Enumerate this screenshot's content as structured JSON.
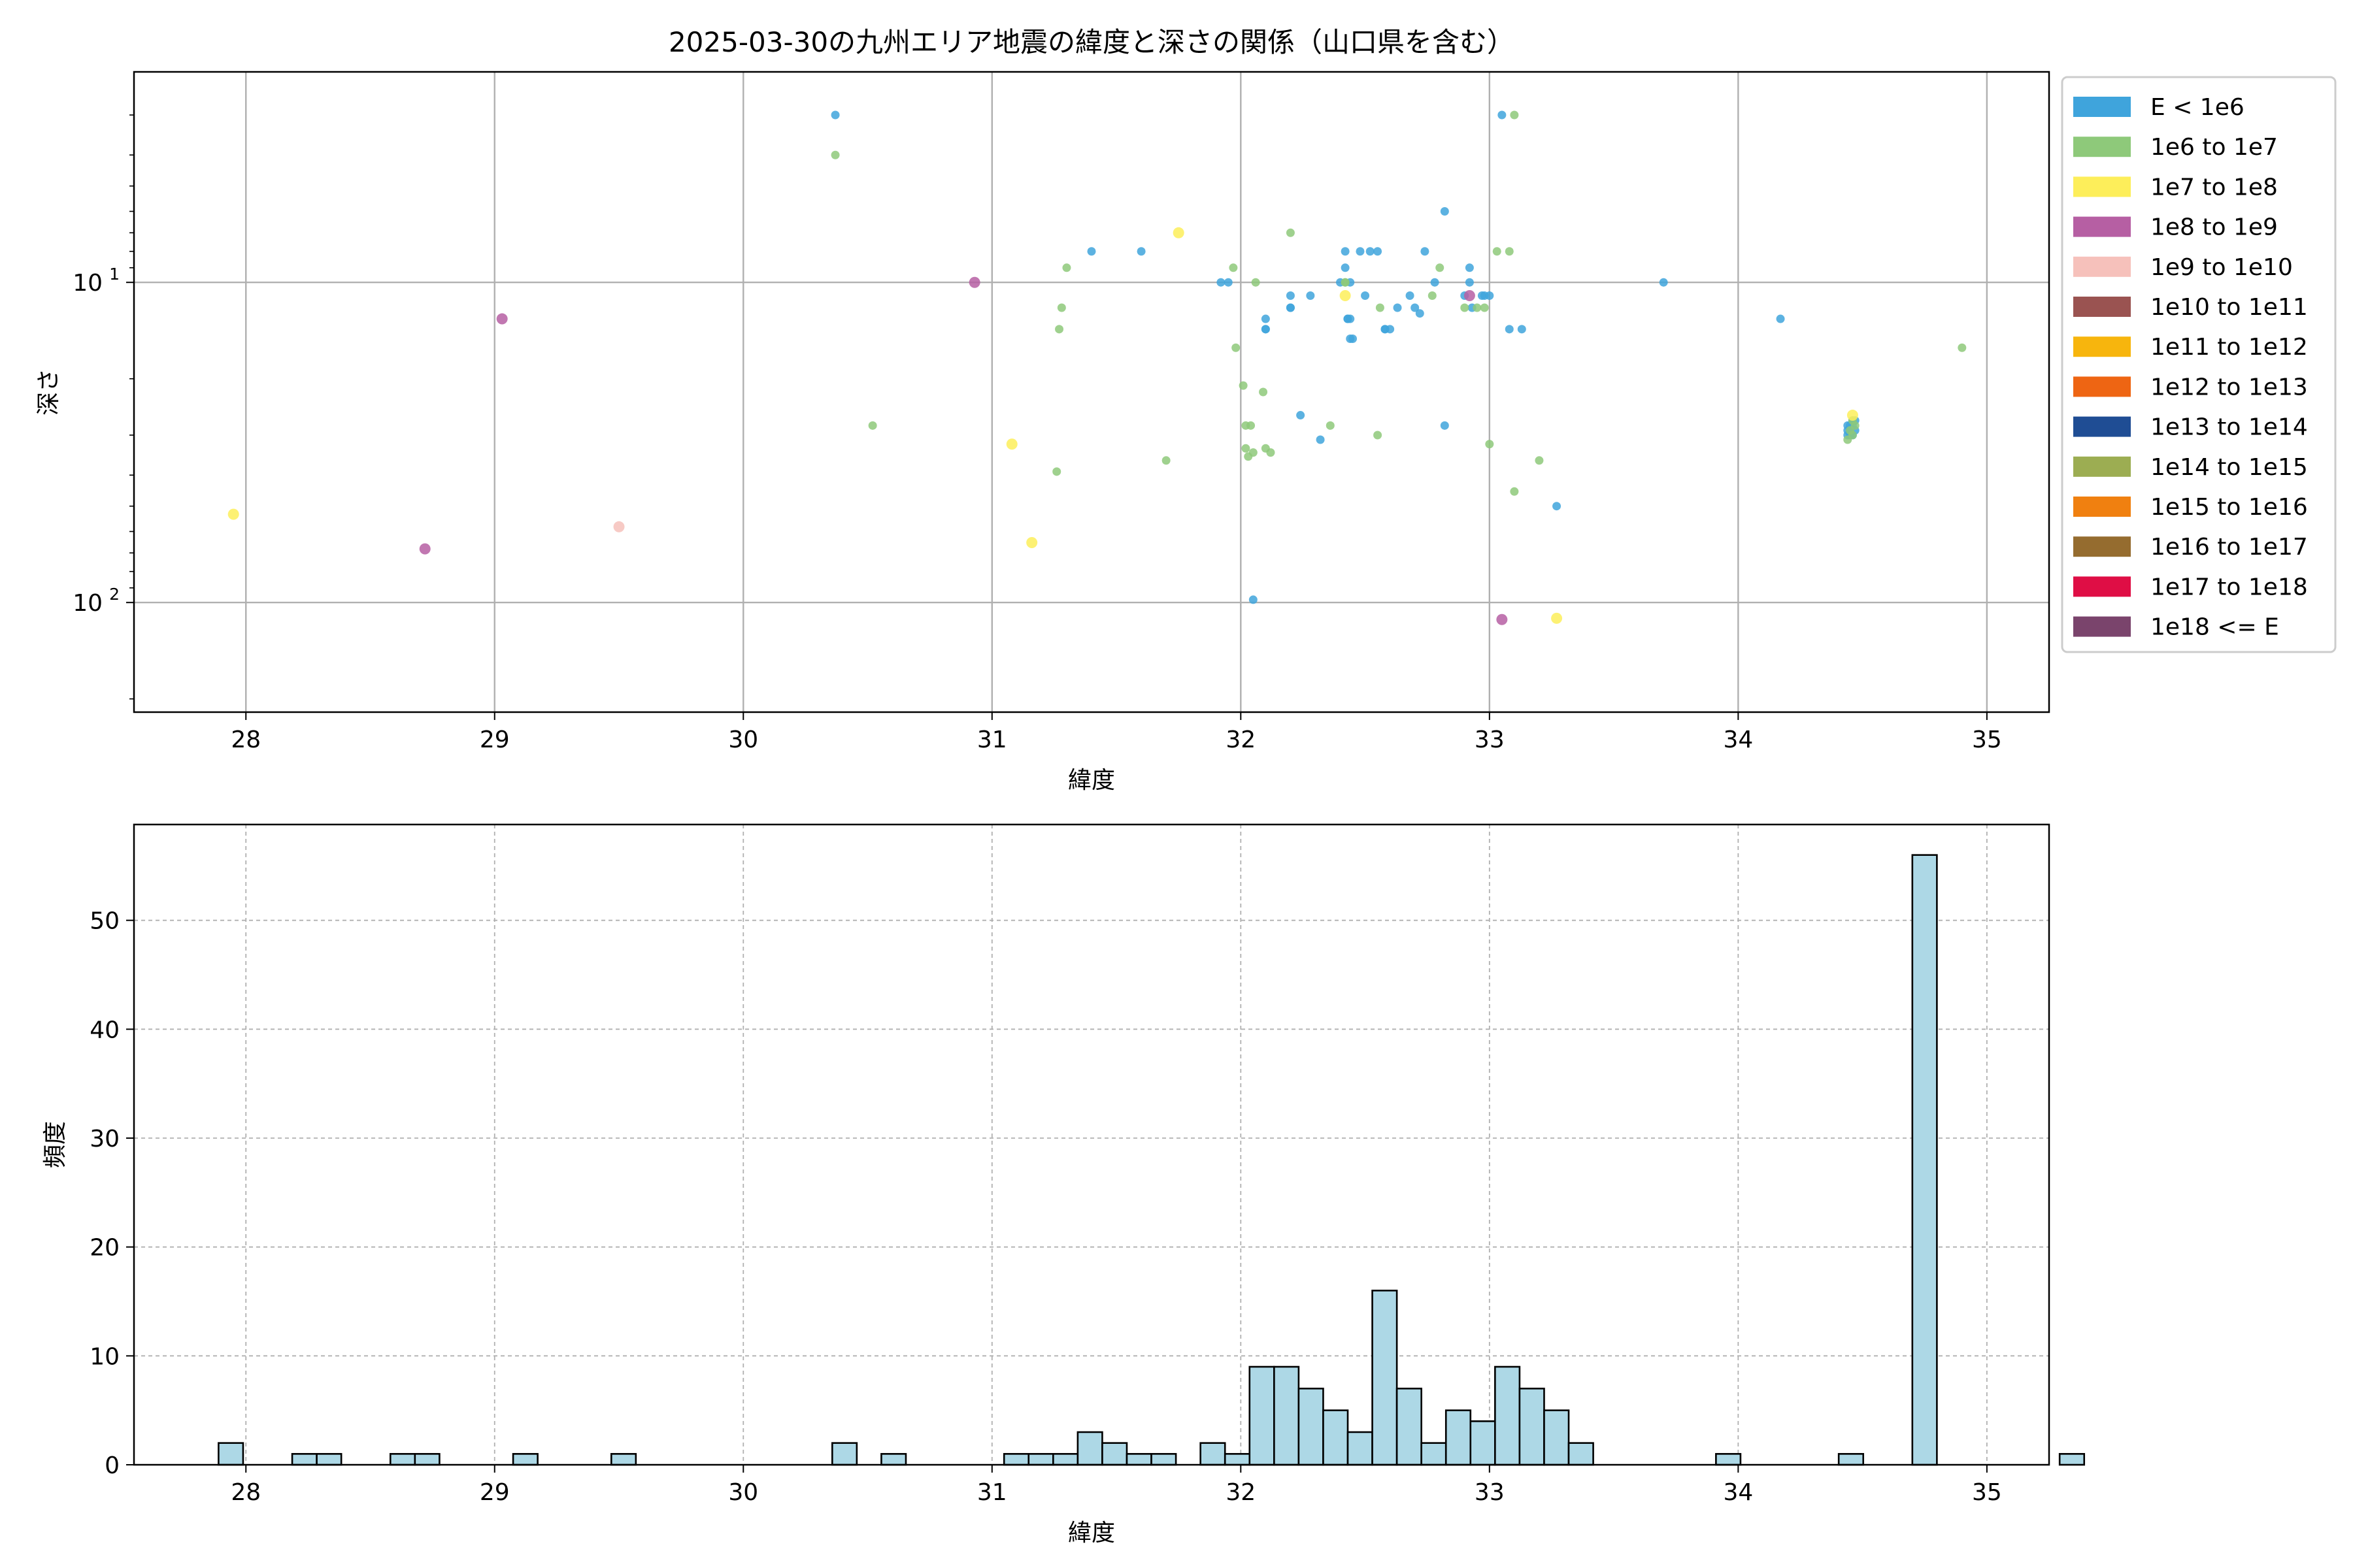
{
  "chart_data": [
    {
      "type": "scatter",
      "title": "2025-03-30の九州エリア地震の緯度と深さの関係（山口県を含む）",
      "xlabel": "緯度",
      "ylabel": "深さ",
      "xlim": [
        27.55,
        35.25
      ],
      "ylim": [
        220,
        2.2
      ],
      "y_scale": "log",
      "y_inverted": true,
      "grid": true,
      "legend_placement": "outside-right",
      "x_ticks": [
        "28",
        "29",
        "30",
        "31",
        "32",
        "33",
        "34",
        "35"
      ],
      "x_tick_values": [
        28,
        29,
        30,
        31,
        32,
        33,
        34,
        35
      ],
      "y_ticks": [
        {
          "base": "10",
          "exp": "1",
          "value": 10
        },
        {
          "base": "10",
          "exp": "2",
          "value": 100
        }
      ],
      "legend": [
        {
          "label": "E < 1e6",
          "color": "#3fa4dc"
        },
        {
          "label": "1e6 to 1e7",
          "color": "#8ec97a"
        },
        {
          "label": "1e7 to 1e8",
          "color": "#fdee5a"
        },
        {
          "label": "1e8 to 1e9",
          "color": "#b65fa3"
        },
        {
          "label": "1e9 to 1e10",
          "color": "#f6c1bb"
        },
        {
          "label": "1e10 to 1e11",
          "color": "#9a5351"
        },
        {
          "label": "1e11 to 1e12",
          "color": "#f7b50d"
        },
        {
          "label": "1e12 to 1e13",
          "color": "#ee6513"
        },
        {
          "label": "1e13 to 1e14",
          "color": "#1f4d94"
        },
        {
          "label": "1e14 to 1e15",
          "color": "#9cad52"
        },
        {
          "label": "1e15 to 1e16",
          "color": "#f08010"
        },
        {
          "label": "1e16 to 1e17",
          "color": "#956c2f"
        },
        {
          "label": "1e17 to 1e18",
          "color": "#df0e45"
        },
        {
          "label": "1e18 <= E",
          "color": "#7a446c"
        }
      ],
      "series": [
        {
          "class": 0,
          "x": [
            30.37,
            33.05,
            31.4,
            31.6,
            31.92,
            31.95,
            32.1,
            32.1,
            32.2,
            32.2,
            32.28,
            32.4,
            32.42,
            32.42,
            32.44,
            32.44,
            32.48,
            32.5,
            32.52,
            32.55,
            32.58,
            32.6,
            32.63,
            32.68,
            32.7,
            32.72,
            32.78,
            32.82,
            32.92,
            32.92,
            32.93,
            32.97,
            32.98,
            33.08,
            33.13,
            33.7,
            34.17,
            32.24,
            32.32,
            32.82,
            33.27,
            32.05,
            32.43,
            32.43,
            32.45,
            34.44,
            34.45,
            34.47,
            34.46,
            34.44,
            34.45,
            34.46,
            34.47,
            34.45,
            34.44,
            34.46,
            32.44,
            32.58,
            32.74,
            32.9,
            32.2,
            32.1,
            33.0
          ],
          "y": [
            3,
            3,
            8,
            8,
            10,
            10,
            13,
            14,
            11,
            12,
            11,
            10,
            8,
            9,
            13,
            15,
            8,
            11,
            8,
            8,
            14,
            14,
            12,
            11,
            12,
            12.5,
            10,
            6,
            9,
            10,
            12,
            11,
            11,
            14,
            14,
            10,
            13,
            26,
            31,
            28,
            50,
            98,
            13,
            13,
            15,
            28,
            29,
            27,
            30,
            29,
            28,
            27,
            29,
            30,
            30,
            28,
            10,
            14,
            8,
            11,
            12,
            14,
            11
          ]
        },
        {
          "class": 1,
          "x": [
            30.37,
            33.1,
            31.28,
            31.27,
            31.3,
            31.7,
            31.97,
            31.98,
            32.01,
            32.02,
            32.03,
            32.05,
            32.06,
            32.09,
            32.1,
            32.12,
            32.2,
            32.36,
            32.42,
            32.55,
            32.56,
            32.77,
            32.8,
            32.9,
            32.95,
            32.98,
            33.0,
            33.03,
            33.08,
            33.1,
            33.2,
            34.9,
            30.52,
            31.26,
            32.02,
            32.04,
            32.42,
            34.46,
            34.47,
            34.45,
            34.46,
            34.44
          ],
          "y": [
            4,
            3,
            12,
            14,
            9,
            36,
            9,
            16,
            21,
            28,
            35,
            34,
            10,
            22,
            33,
            34,
            7,
            28,
            10,
            30,
            12,
            11,
            9,
            12,
            12,
            12,
            32,
            8,
            8,
            45,
            36,
            16,
            28,
            39,
            33,
            28,
            10,
            27,
            28,
            29,
            30,
            31
          ]
        },
        {
          "class": 2,
          "x": [
            27.95,
            31.08,
            31.16,
            31.75,
            32.42,
            33.27,
            34.46
          ],
          "y": [
            53,
            32,
            65,
            7,
            11,
            112,
            26
          ]
        },
        {
          "class": 3,
          "x": [
            28.72,
            29.03,
            30.93,
            32.92,
            33.05
          ],
          "y": [
            68,
            13,
            10,
            11,
            113
          ]
        },
        {
          "class": 4,
          "x": [
            29.5
          ],
          "y": [
            58
          ]
        }
      ]
    },
    {
      "type": "bar",
      "subtype": "histogram",
      "xlabel": "緯度",
      "ylabel": "頻度",
      "xlim": [
        27.55,
        35.25
      ],
      "ylim": [
        0,
        58.8
      ],
      "grid": true,
      "grid_style": "dashed",
      "bar_color": "#add8e6",
      "edge_color": "#000000",
      "bin_start": 27.89,
      "bin_width": 0.0987,
      "x_ticks": [
        "28",
        "29",
        "30",
        "31",
        "32",
        "33",
        "34",
        "35"
      ],
      "x_tick_values": [
        28,
        29,
        30,
        31,
        32,
        33,
        34,
        35
      ],
      "y_ticks": [
        "0",
        "10",
        "20",
        "30",
        "40",
        "50"
      ],
      "y_tick_values": [
        0,
        10,
        20,
        30,
        40,
        50
      ],
      "values": [
        2,
        0,
        0,
        1,
        1,
        0,
        0,
        1,
        1,
        0,
        0,
        0,
        1,
        0,
        0,
        0,
        1,
        0,
        0,
        0,
        0,
        0,
        0,
        0,
        0,
        2,
        0,
        1,
        0,
        0,
        0,
        0,
        1,
        1,
        1,
        3,
        2,
        1,
        1,
        0,
        2,
        1,
        9,
        9,
        7,
        5,
        3,
        16,
        7,
        2,
        5,
        4,
        9,
        7,
        5,
        2,
        0,
        0,
        0,
        0,
        0,
        1,
        0,
        0,
        0,
        0,
        1,
        0,
        0,
        56,
        0,
        0,
        0,
        0,
        0,
        1
      ]
    }
  ]
}
